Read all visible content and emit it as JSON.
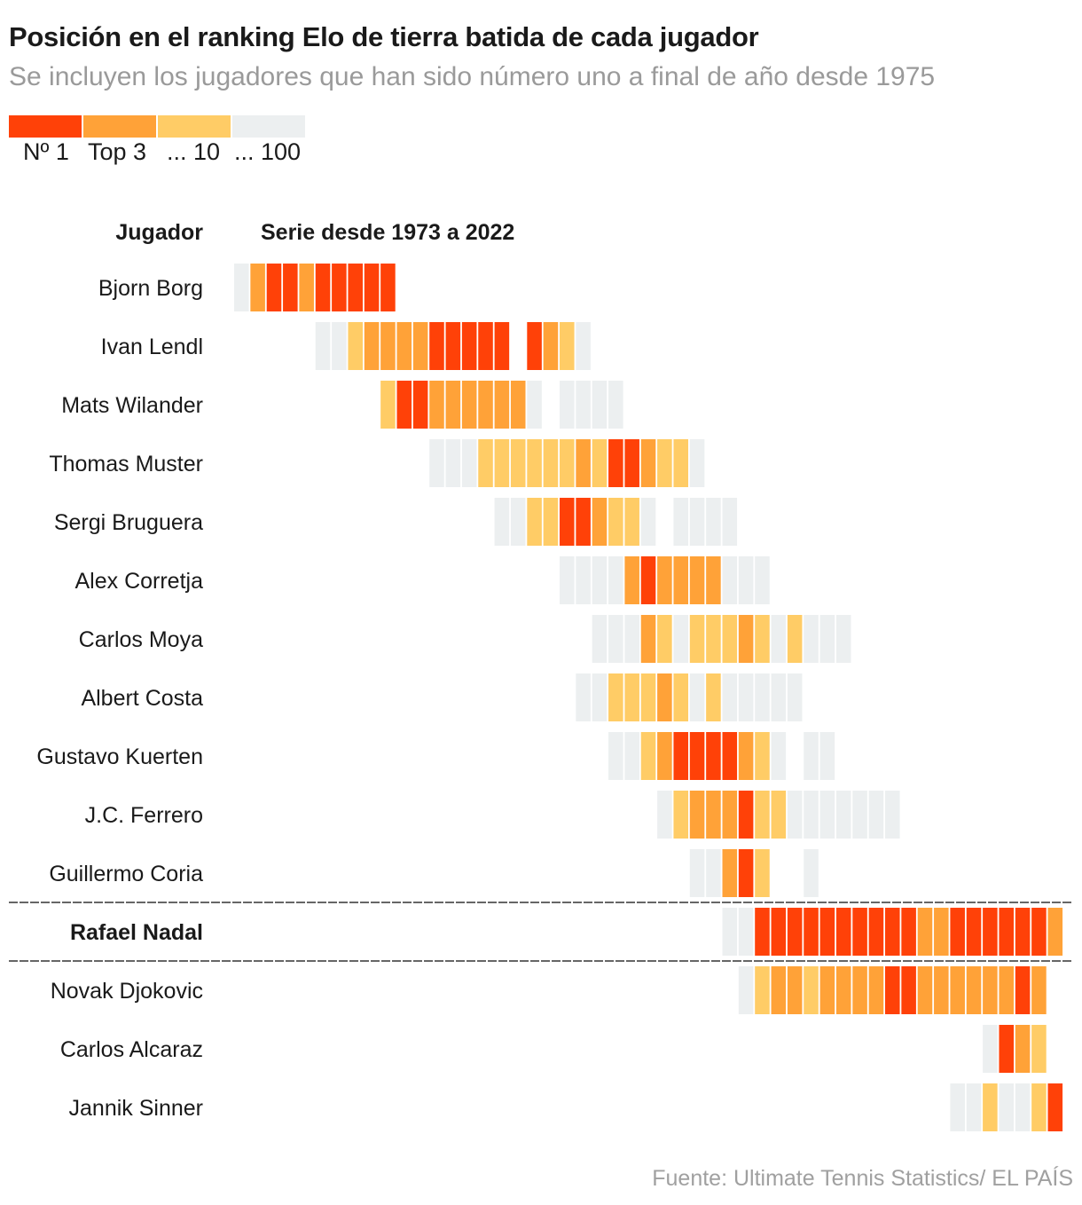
{
  "title": "Posición en el ranking Elo de tierra batida de cada jugador",
  "subtitle": "Se incluyen los jugadores que han sido número uno a final de año desde 1975",
  "legend": {
    "items": [
      {
        "label": "Nº 1",
        "color": "#ff4108"
      },
      {
        "label": "Top 3",
        "color": "#ffa238"
      },
      {
        "label": "... 10",
        "color": "#ffcc66"
      },
      {
        "label": "... 100",
        "color": "#eceff0"
      }
    ]
  },
  "headers": {
    "player": "Jugador",
    "series": "Serie desde 1973 a 2022"
  },
  "source": "Fuente: Ultimate Tennis Statistics/ EL PAÍS",
  "chart_data": {
    "type": "heatmap",
    "x_start": 1973,
    "x_end": 2022,
    "levels": [
      "Nº 1",
      "Top 3",
      "... 10",
      "... 100"
    ],
    "highlight": "Rafael Nadal",
    "rows": [
      {
        "player": "Bjorn Borg",
        "start": 1973,
        "values": [
          4,
          2,
          1,
          1,
          2,
          1,
          1,
          1,
          1,
          1
        ]
      },
      {
        "player": "Ivan Lendl",
        "start": 1978,
        "values": [
          4,
          4,
          3,
          2,
          2,
          2,
          2,
          1,
          1,
          1,
          1,
          1,
          0,
          1,
          2,
          3,
          4
        ]
      },
      {
        "player": "Mats Wilander",
        "start": 1982,
        "values": [
          3,
          1,
          1,
          2,
          2,
          2,
          2,
          2,
          2,
          4,
          0,
          4,
          4,
          4,
          4
        ]
      },
      {
        "player": "Thomas Muster",
        "start": 1985,
        "values": [
          4,
          4,
          4,
          3,
          3,
          3,
          3,
          3,
          3,
          2,
          3,
          1,
          1,
          2,
          3,
          3,
          4
        ]
      },
      {
        "player": "Sergi Bruguera",
        "start": 1989,
        "values": [
          4,
          4,
          3,
          3,
          1,
          1,
          2,
          3,
          3,
          4,
          0,
          4,
          4,
          4,
          4
        ]
      },
      {
        "player": "Alex Corretja",
        "start": 1993,
        "values": [
          4,
          4,
          4,
          4,
          2,
          1,
          2,
          2,
          2,
          2,
          4,
          4,
          4
        ]
      },
      {
        "player": "Carlos Moya",
        "start": 1995,
        "values": [
          4,
          4,
          4,
          2,
          3,
          4,
          3,
          3,
          3,
          2,
          3,
          4,
          3,
          4,
          4,
          4
        ]
      },
      {
        "player": "Albert Costa",
        "start": 1994,
        "values": [
          4,
          4,
          3,
          3,
          3,
          2,
          3,
          4,
          3,
          4,
          4,
          4,
          4,
          4
        ]
      },
      {
        "player": "Gustavo Kuerten",
        "start": 1996,
        "values": [
          4,
          4,
          3,
          2,
          1,
          1,
          1,
          1,
          2,
          3,
          4,
          0,
          4,
          4
        ]
      },
      {
        "player": "J.C. Ferrero",
        "start": 1999,
        "values": [
          4,
          3,
          2,
          2,
          2,
          1,
          3,
          3,
          4,
          4,
          4,
          4,
          4,
          4,
          4
        ]
      },
      {
        "player": "Guillermo Coria",
        "start": 2001,
        "values": [
          4,
          4,
          2,
          1,
          3,
          0,
          0,
          4
        ]
      },
      {
        "player": "Rafael Nadal",
        "start": 2003,
        "values": [
          4,
          4,
          1,
          1,
          1,
          1,
          1,
          1,
          1,
          1,
          1,
          1,
          2,
          2,
          1,
          1,
          1,
          1,
          1,
          1,
          2
        ]
      },
      {
        "player": "Novak Djokovic",
        "start": 2004,
        "values": [
          4,
          3,
          2,
          2,
          3,
          2,
          2,
          2,
          2,
          1,
          1,
          2,
          2,
          2,
          2,
          2,
          2,
          1,
          2
        ]
      },
      {
        "player": "Carlos Alcaraz",
        "start": 2019,
        "values": [
          4,
          1,
          2,
          3
        ]
      },
      {
        "player": "Jannik Sinner",
        "start": 2017,
        "values": [
          4,
          4,
          3,
          4,
          4,
          3,
          1
        ]
      }
    ]
  }
}
